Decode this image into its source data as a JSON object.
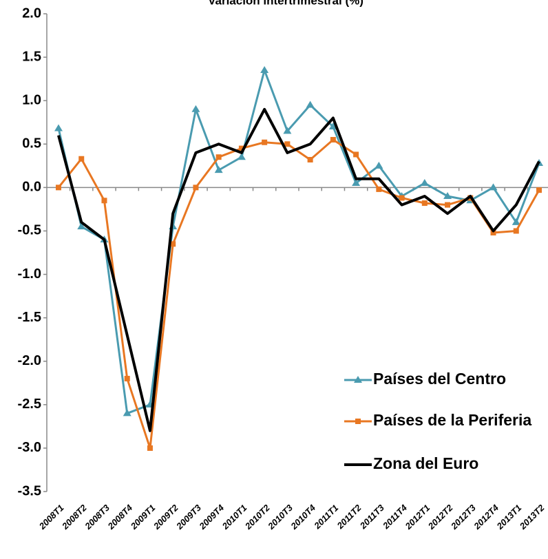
{
  "chart_data": {
    "type": "line",
    "title": "Variación intertrimestral (%)",
    "categories": [
      "2008T1",
      "2008T2",
      "2008T3",
      "2008T4",
      "2009T1",
      "2009T2",
      "2009T3",
      "2009T4",
      "2010T1",
      "2010T2",
      "2010T3",
      "2010T4",
      "2011T1",
      "2011T2",
      "2011T3",
      "2011T4",
      "2012T1",
      "2012T2",
      "2012T3",
      "2012T4",
      "2013T1",
      "2013T2"
    ],
    "series": [
      {
        "name": "Países del Centro",
        "color": "#4a9bb0",
        "marker": "triangle",
        "values": [
          0.68,
          -0.45,
          -0.6,
          -2.6,
          -2.5,
          -0.45,
          0.9,
          0.2,
          0.35,
          1.35,
          0.65,
          0.95,
          0.7,
          0.05,
          0.25,
          -0.1,
          0.05,
          -0.1,
          -0.15,
          0.0,
          -0.4,
          0.28
        ]
      },
      {
        "name": "Países de la Periferia",
        "color": "#e87722",
        "marker": "square",
        "values": [
          0.0,
          0.33,
          -0.15,
          -2.2,
          -3.0,
          -0.65,
          0.0,
          0.35,
          0.45,
          0.52,
          0.5,
          0.32,
          0.55,
          0.38,
          -0.02,
          -0.12,
          -0.18,
          -0.2,
          -0.12,
          -0.52,
          -0.5,
          -0.03
        ]
      },
      {
        "name": "Zona del Euro",
        "color": "#000000",
        "marker": "none",
        "values": [
          0.6,
          -0.4,
          -0.6,
          -1.7,
          -2.8,
          -0.3,
          0.4,
          0.5,
          0.4,
          0.9,
          0.4,
          0.5,
          0.8,
          0.1,
          0.1,
          -0.2,
          -0.1,
          -0.3,
          -0.1,
          -0.5,
          -0.2,
          0.3
        ]
      }
    ],
    "ylim": [
      -3.5,
      2.0
    ],
    "yticks": [
      {
        "value": 2.0,
        "label": "2.0"
      },
      1.5,
      {
        "value": 1.0,
        "label": "1.0"
      },
      0.5,
      {
        "value": 0.0,
        "label": "0.0"
      },
      -0.5,
      {
        "value": -1.0,
        "label": "-1.0"
      },
      -1.5,
      {
        "value": -2.0,
        "label": "-2.0"
      },
      -2.5,
      {
        "value": -3.0,
        "label": "-3.0"
      },
      -3.5
    ],
    "legend": "lower-right"
  }
}
